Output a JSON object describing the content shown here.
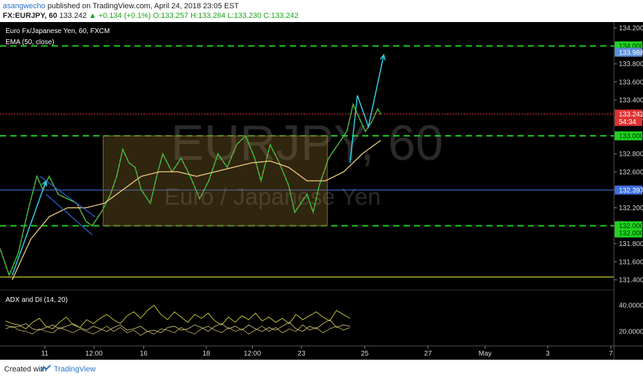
{
  "header": {
    "author": "asangwecho",
    "published": "published on TradingView.com, April 24, 2018 23:05 EST",
    "symbol": "FX:EURJPY, 60",
    "last": "133.242",
    "change": "+0.134 (+0.1%)",
    "o": "O:133.257",
    "h": "H:133.264",
    "l": "L:133.230",
    "c": "C:133.242"
  },
  "legend": {
    "instrument": "Euro Fx/Japanese Yen, 60, FXCM",
    "ema": "EMA (50, close)"
  },
  "watermark": {
    "main": "EURJPY, 60",
    "sub": "Euro / Japanese Yen"
  },
  "footer": {
    "created_with": "Created with",
    "brand": "TradingView"
  },
  "chart_data": {
    "type": "line",
    "title": "Euro Fx/Japanese Yen, 60, FXCM",
    "price_axis": {
      "ylim": [
        131.3,
        134.25
      ],
      "ticks": [
        "134.200",
        "134.000",
        "133.800",
        "133.600",
        "133.400",
        "133.200",
        "133.000",
        "132.800",
        "132.600",
        "132.400",
        "132.200",
        "132.000",
        "131.800",
        "131.600",
        "131.400"
      ],
      "tick_values": [
        134.2,
        134.0,
        133.8,
        133.6,
        133.4,
        133.2,
        133.0,
        132.8,
        132.6,
        132.4,
        132.2,
        132.0,
        131.8,
        131.6,
        131.4
      ]
    },
    "badges": [
      {
        "label": "134.000",
        "value": 134.0,
        "color": "#1fd31f"
      },
      {
        "label": "133.988",
        "value": 133.93,
        "color": "#5a8fd8"
      },
      {
        "label": "133.242",
        "value": 133.242,
        "color": "#e03232"
      },
      {
        "label": "54:34",
        "value": 133.16,
        "color": "#e03232"
      },
      {
        "label": "133.000",
        "value": 133.0,
        "color": "#1fd31f"
      },
      {
        "label": "132.397",
        "value": 132.397,
        "color": "#3d6fe0"
      },
      {
        "label": "132.000",
        "value": 132.0,
        "color": "#1fd31f"
      },
      {
        "label": "132.000",
        "value": 131.92,
        "color": "#1fd31f"
      }
    ],
    "levels": [
      {
        "value": 134.0,
        "style": "dashed",
        "color": "#1fd31f"
      },
      {
        "value": 133.0,
        "style": "dashed",
        "color": "#1fd31f"
      },
      {
        "value": 132.0,
        "style": "dashed",
        "color": "#1fd31f"
      },
      {
        "value": 132.397,
        "style": "solid",
        "color": "#3d6fe0"
      },
      {
        "value": 133.242,
        "style": "dotted",
        "color": "#e03232"
      },
      {
        "value": 131.43,
        "style": "solid",
        "color": "#d8d83a"
      }
    ],
    "time_axis": {
      "labels": [
        "11",
        "12:00",
        "16",
        "18",
        "12:00",
        "23",
        "25",
        "27",
        "May",
        "3",
        "7"
      ],
      "positions": [
        0.073,
        0.153,
        0.234,
        0.336,
        0.411,
        0.491,
        0.594,
        0.697,
        0.79,
        0.892,
        0.995
      ]
    },
    "range_box": {
      "x0": 0.168,
      "x1": 0.533,
      "y_top": 133.0,
      "y_bottom": 132.0
    },
    "price_series": [
      [
        0.0,
        131.75
      ],
      [
        0.015,
        131.45
      ],
      [
        0.03,
        131.7
      ],
      [
        0.045,
        132.15
      ],
      [
        0.06,
        132.55
      ],
      [
        0.07,
        132.4
      ],
      [
        0.08,
        132.55
      ],
      [
        0.095,
        132.35
      ],
      [
        0.11,
        132.3
      ],
      [
        0.125,
        132.25
      ],
      [
        0.14,
        132.05
      ],
      [
        0.15,
        132.0
      ],
      [
        0.165,
        132.15
      ],
      [
        0.18,
        132.35
      ],
      [
        0.19,
        132.55
      ],
      [
        0.2,
        132.85
      ],
      [
        0.21,
        132.7
      ],
      [
        0.22,
        132.65
      ],
      [
        0.23,
        132.4
      ],
      [
        0.245,
        132.25
      ],
      [
        0.255,
        132.55
      ],
      [
        0.265,
        132.8
      ],
      [
        0.28,
        132.6
      ],
      [
        0.295,
        132.75
      ],
      [
        0.31,
        132.55
      ],
      [
        0.325,
        132.3
      ],
      [
        0.34,
        132.5
      ],
      [
        0.355,
        132.8
      ],
      [
        0.37,
        132.65
      ],
      [
        0.385,
        132.9
      ],
      [
        0.4,
        133.0
      ],
      [
        0.415,
        132.75
      ],
      [
        0.425,
        132.5
      ],
      [
        0.44,
        132.9
      ],
      [
        0.455,
        132.7
      ],
      [
        0.47,
        132.45
      ],
      [
        0.48,
        132.15
      ],
      [
        0.49,
        132.25
      ],
      [
        0.5,
        132.35
      ],
      [
        0.51,
        132.15
      ],
      [
        0.52,
        132.45
      ],
      [
        0.535,
        132.75
      ],
      [
        0.55,
        132.9
      ],
      [
        0.565,
        133.05
      ],
      [
        0.575,
        133.35
      ],
      [
        0.585,
        133.2
      ],
      [
        0.595,
        133.05
      ],
      [
        0.605,
        133.15
      ],
      [
        0.615,
        133.3
      ],
      [
        0.62,
        133.24
      ]
    ],
    "ema_series": [
      [
        0.02,
        131.4
      ],
      [
        0.05,
        131.85
      ],
      [
        0.08,
        132.1
      ],
      [
        0.11,
        132.2
      ],
      [
        0.14,
        132.2
      ],
      [
        0.17,
        132.25
      ],
      [
        0.2,
        132.4
      ],
      [
        0.23,
        132.55
      ],
      [
        0.26,
        132.6
      ],
      [
        0.29,
        132.6
      ],
      [
        0.32,
        132.55
      ],
      [
        0.35,
        132.6
      ],
      [
        0.38,
        132.65
      ],
      [
        0.41,
        132.7
      ],
      [
        0.44,
        132.72
      ],
      [
        0.47,
        132.65
      ],
      [
        0.5,
        132.5
      ],
      [
        0.53,
        132.5
      ],
      [
        0.56,
        132.6
      ],
      [
        0.59,
        132.8
      ],
      [
        0.62,
        132.95
      ]
    ],
    "arrows": [
      {
        "points": [
          [
            0.02,
            131.45
          ],
          [
            0.075,
            132.5
          ]
        ],
        "color": "#35c9e0"
      },
      {
        "points": [
          [
            0.57,
            132.7
          ],
          [
            0.582,
            133.45
          ],
          [
            0.6,
            133.1
          ],
          [
            0.625,
            133.9
          ]
        ],
        "color": "#35c9e0"
      }
    ],
    "channel": {
      "upper": [
        [
          0.065,
          132.55
        ],
        [
          0.155,
          132.1
        ]
      ],
      "lower": [
        [
          0.075,
          132.35
        ],
        [
          0.15,
          131.9
        ]
      ],
      "color": "#2d5fd8"
    },
    "indicator": {
      "title": "ADX and DI (14, 20)",
      "ylim": [
        10,
        50
      ],
      "ticks": [
        "40.0000",
        "20.0000"
      ],
      "tick_values": [
        40,
        20
      ],
      "series": [
        {
          "color": "#d8d83a",
          "values": [
            28,
            26,
            25,
            22,
            27,
            30,
            24,
            22,
            27,
            31,
            25,
            23,
            29,
            26,
            30,
            33,
            29,
            26,
            32,
            35,
            30,
            36,
            40,
            33,
            29,
            35,
            31,
            27,
            33,
            30,
            34,
            28,
            25,
            31,
            27,
            32,
            29,
            34,
            28,
            31,
            27,
            30,
            26,
            33,
            29,
            32,
            35,
            31,
            28,
            36,
            33,
            30
          ]
        },
        {
          "color": "#b8b05a",
          "values": [
            22,
            24,
            21,
            20,
            18,
            22,
            20,
            19,
            23,
            21,
            19,
            22,
            20,
            18,
            21,
            24,
            20,
            23,
            19,
            21,
            17,
            20,
            18,
            22,
            21,
            19,
            23,
            20,
            18,
            22,
            24,
            21,
            19,
            23,
            20,
            22,
            18,
            21,
            24,
            20,
            23,
            19,
            22,
            20,
            25,
            21,
            23,
            19,
            22,
            24,
            21,
            23
          ]
        },
        {
          "color": "#c9c07a",
          "values": [
            25,
            23,
            24,
            26,
            22,
            21,
            23,
            25,
            22,
            24,
            26,
            23,
            21,
            24,
            22,
            20,
            23,
            25,
            21,
            22,
            24,
            20,
            21,
            19,
            23,
            24,
            21,
            22,
            25,
            23,
            20,
            24,
            26,
            22,
            24,
            21,
            25,
            22,
            20,
            23,
            21,
            24,
            27,
            22,
            20,
            24,
            22,
            26,
            29,
            23,
            25,
            24
          ]
        }
      ]
    }
  }
}
